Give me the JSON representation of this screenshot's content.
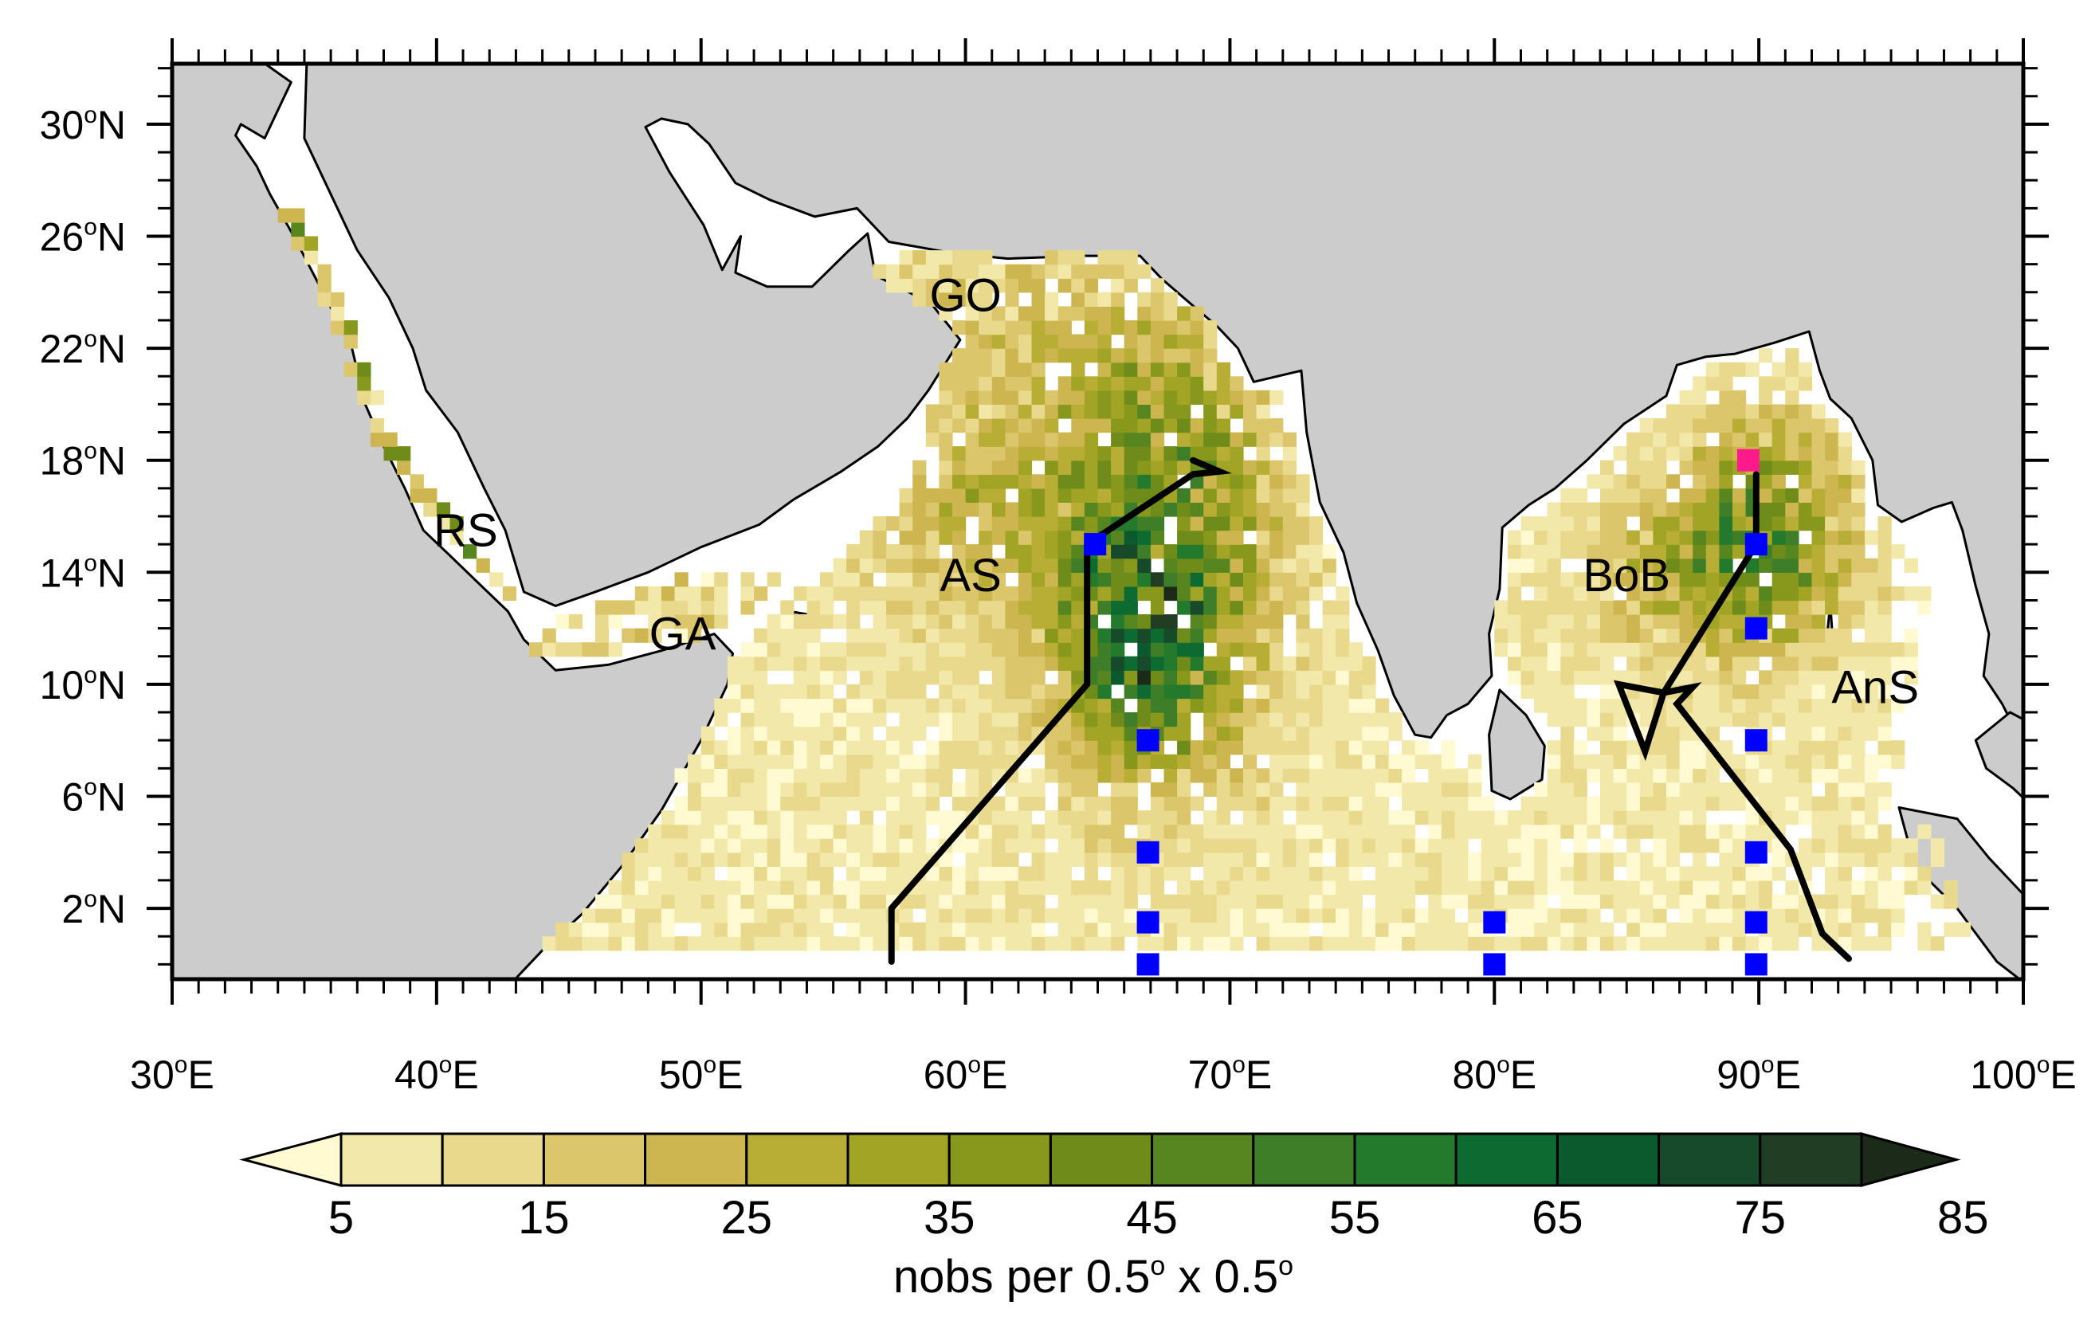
{
  "map": {
    "lon_range": [
      30,
      100
    ],
    "lat_range": [
      -0.5,
      32
    ],
    "x_ticks": [
      "30°E",
      "40°E",
      "50°E",
      "60°E",
      "70°E",
      "80°E",
      "90°E",
      "100°E"
    ],
    "y_ticks": [
      "2°N",
      "6°N",
      "10°N",
      "14°N",
      "18°N",
      "22°N",
      "26°N",
      "30°N"
    ],
    "land_color": "#cccccc",
    "ocean_color": "#ffffff",
    "regions": [
      {
        "label": "RS",
        "lon": 41.1,
        "lat": 15.5
      },
      {
        "label": "GA",
        "lon": 49.3,
        "lat": 11.8
      },
      {
        "label": "GO",
        "lon": 60.0,
        "lat": 23.9
      },
      {
        "label": "AS",
        "lon": 60.2,
        "lat": 13.9
      },
      {
        "label": "BoB",
        "lon": 85.0,
        "lat": 13.9
      },
      {
        "label": "AnS",
        "lon": 94.4,
        "lat": 9.9
      }
    ],
    "tracks": [
      {
        "name": "arabian-sea-track",
        "color": "#000000",
        "points": [
          [
            57.2,
            0.1
          ],
          [
            57.2,
            2.0
          ],
          [
            64.6,
            10.0
          ],
          [
            64.6,
            15.0
          ],
          [
            66.2,
            16.0
          ],
          [
            68.6,
            17.5
          ],
          [
            69.6,
            17.6
          ],
          [
            68.6,
            18.0
          ]
        ]
      },
      {
        "name": "bay-of-bengal-track",
        "color": "#000000",
        "points": [
          [
            89.9,
            17.5
          ],
          [
            89.9,
            15.0
          ],
          [
            86.4,
            9.7
          ],
          [
            85.7,
            7.6
          ],
          [
            84.7,
            10.0
          ],
          [
            86.4,
            9.7
          ],
          [
            87.5,
            9.9
          ],
          [
            86.9,
            9.3
          ],
          [
            91.2,
            4.1
          ],
          [
            92.4,
            1.1
          ],
          [
            93.4,
            0.2
          ]
        ]
      }
    ],
    "blue_markers": [
      [
        64.9,
        15.0
      ],
      [
        66.9,
        8.0
      ],
      [
        66.9,
        4.0
      ],
      [
        66.9,
        1.5
      ],
      [
        66.9,
        0.0
      ],
      [
        80.0,
        1.5
      ],
      [
        80.0,
        0.0
      ],
      [
        89.9,
        15.0
      ],
      [
        89.9,
        12.0
      ],
      [
        89.9,
        8.0
      ],
      [
        89.9,
        4.0
      ],
      [
        89.9,
        1.5
      ],
      [
        89.9,
        0.0
      ]
    ],
    "pink_markers": [
      [
        89.6,
        18.0
      ]
    ],
    "blue_color": "#0000ff",
    "pink_color": "#ff1a8c"
  },
  "colorbar": {
    "ticks": [
      "5",
      "15",
      "25",
      "35",
      "45",
      "55",
      "65",
      "75",
      "85"
    ],
    "title": "nobs per 0.5° x 0.5°",
    "colors": [
      "#fffad2",
      "#f2e8a9",
      "#e9d98c",
      "#dcc66b",
      "#cdb64f",
      "#b8ad35",
      "#a1a424",
      "#87981c",
      "#6f8c1a",
      "#578520",
      "#3e7e28",
      "#237a2c",
      "#0d6b31",
      "#0a5a2d",
      "#164a2a",
      "#213d24",
      "#1b2a19"
    ]
  }
}
